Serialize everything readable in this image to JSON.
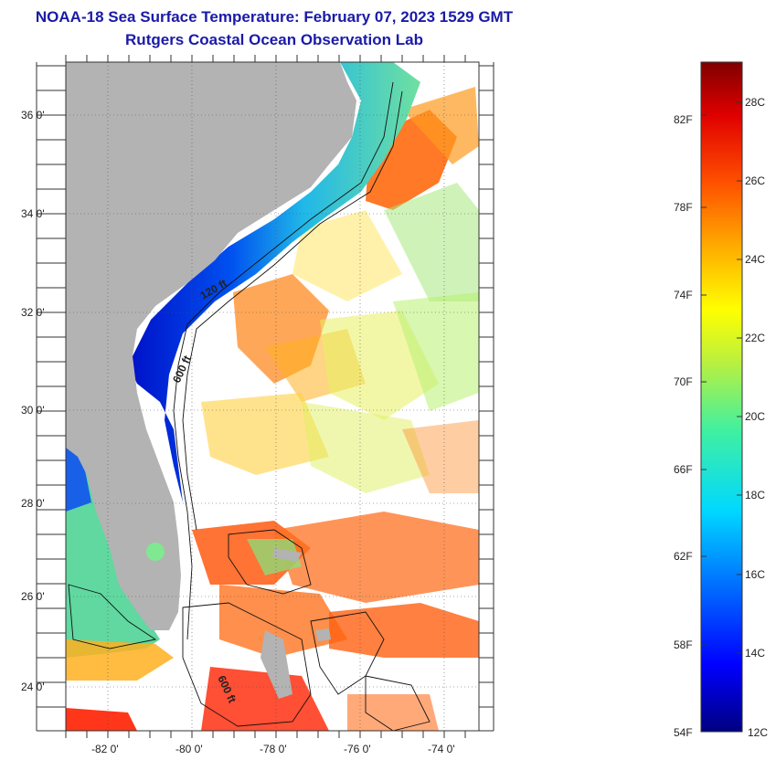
{
  "header": {
    "title": "NOAA-18 Sea Surface Temperature:  February 07, 2023 1529 GMT",
    "subtitle": "Rutgers Coastal Ocean Observation Lab"
  },
  "map": {
    "lat_ticks": [
      "36 0'",
      "34 0'",
      "32 0'",
      "30 0'",
      "28 0'",
      "26 0'",
      "24 0'"
    ],
    "lon_ticks": [
      "-82 0'",
      "-80 0'",
      "-78 0'",
      "-76 0'",
      "-74 0'"
    ],
    "isobath_labels": [
      "120 ft",
      "600 ft",
      "600 ft"
    ],
    "colors": {
      "land": "#b3b3b3",
      "cloud": "#ffffff",
      "frame": "#333333"
    }
  },
  "colorbar": {
    "fahrenheit_labels": [
      "82F",
      "78F",
      "74F",
      "70F",
      "66F",
      "62F",
      "58F",
      "54F"
    ],
    "celsius_labels": [
      "28C",
      "26C",
      "24C",
      "22C",
      "20C",
      "18C",
      "16C",
      "14C",
      "12C"
    ]
  }
}
